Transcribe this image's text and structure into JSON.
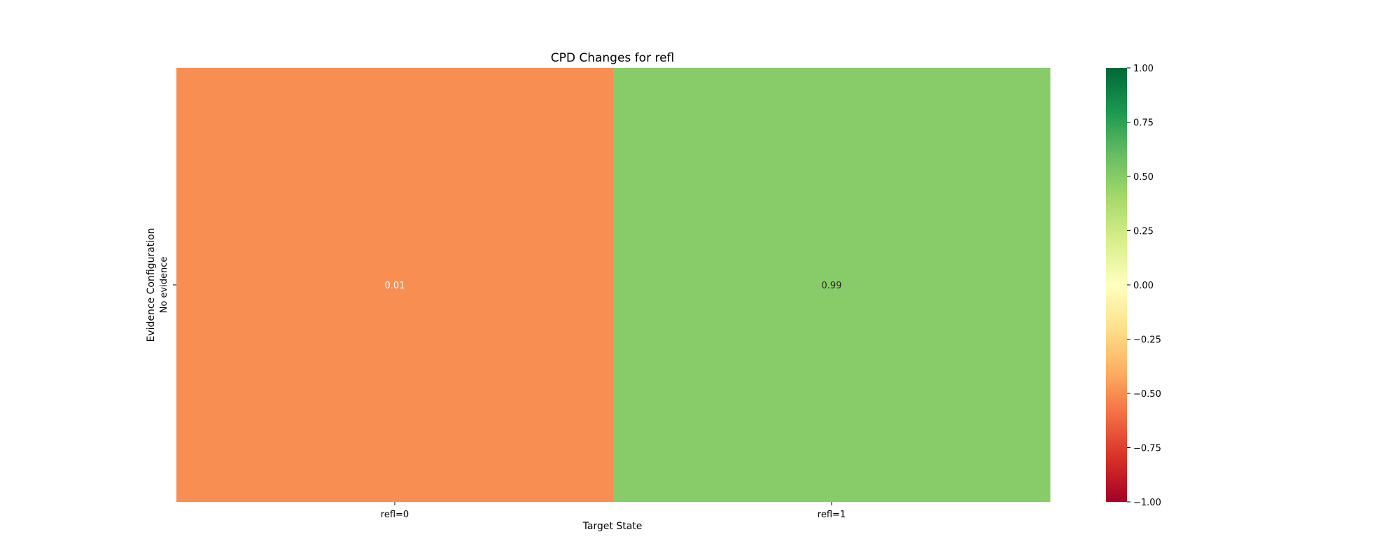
{
  "chart_data": {
    "type": "heatmap",
    "title": "CPD Changes for refl",
    "xlabel": "Target State",
    "ylabel": "Evidence Configuration",
    "x_categories": [
      "refl=0",
      "refl=1"
    ],
    "y_categories": [
      "No evidence"
    ],
    "values": [
      [
        0.01,
        0.99
      ]
    ],
    "cell_colors": [
      [
        "#f98e52",
        "#88cc6a"
      ]
    ],
    "annotations": [
      [
        "0.01",
        "0.99"
      ]
    ],
    "annotation_colors": [
      [
        "#ffffff",
        "#262626"
      ]
    ],
    "colormap": "RdYlGn",
    "vmin": -1,
    "vmax": 1,
    "colorbar_ticks": [
      "1.00",
      "0.75",
      "0.50",
      "0.25",
      "0.00",
      "−0.25",
      "−0.50",
      "−0.75",
      "−1.00"
    ]
  }
}
